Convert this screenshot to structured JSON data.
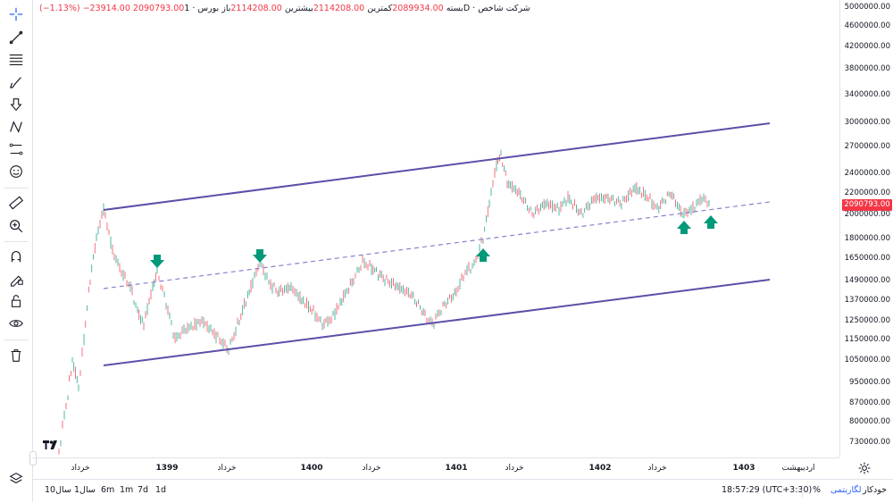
{
  "legend": {
    "symbol": "شرکت شاخص",
    "interval": "1D",
    "exchange": "بورس",
    "open_label": "باز",
    "open": "2114208.00",
    "high_label": "بیشترین",
    "high": "2114208.00",
    "low_label": "کمترین",
    "low": "2089934.00",
    "close_label": "بسته",
    "close": "2090793.00",
    "change": "−23914.00",
    "change_pct": "(−1.13%)"
  },
  "price_axis": {
    "ticks": [
      "5000000.00",
      "4600000.00",
      "4200000.00",
      "3800000.00",
      "3400000.00",
      "3000000.00",
      "2700000.00",
      "2400000.00",
      "2200000.00",
      "2000000.00",
      "1800000.00",
      "1650000.00",
      "1490000.00",
      "1370000.00",
      "1250000.00",
      "1150000.00",
      "1050000.00",
      "950000.00",
      "870000.00",
      "800000.00",
      "730000.00"
    ],
    "current_price": "2090793.00"
  },
  "time_axis": {
    "labels": [
      "خرداد",
      "1399",
      "خرداد",
      "1400",
      "خرداد",
      "1401",
      "خرداد",
      "1402",
      "خرداد",
      "1403",
      "اردیبهشت"
    ]
  },
  "bottom_bar": {
    "ranges": [
      "1d",
      "7d",
      "1m",
      "6m",
      "1سال",
      "10سال"
    ],
    "clock": "18:57:29 (UTC+3:30)",
    "percent": "%",
    "log": "لگاریتمی",
    "auto": "خودکار"
  },
  "colors": {
    "channel": "#5b4fa8",
    "up_candle": "#089981",
    "down_candle": "#f23645",
    "arrow": "#00997a",
    "accent": "#2962ff"
  },
  "chart_data": {
    "type": "candlestick",
    "scale": "logarithmic",
    "series": [
      {
        "date": "1398-Q4",
        "value": 1300000
      },
      {
        "date": "1399-03",
        "value": 2100000
      },
      {
        "date": "1399-07",
        "value": 1250000
      },
      {
        "date": "1400-01",
        "value": 1120000
      },
      {
        "date": "1400-03",
        "value": 1620000
      },
      {
        "date": "1400-09",
        "value": 1250000
      },
      {
        "date": "1401-01",
        "value": 1600000
      },
      {
        "date": "1401-06",
        "value": 1260000
      },
      {
        "date": "1401-12",
        "value": 2600000
      },
      {
        "date": "1402-03",
        "value": 2000000
      },
      {
        "date": "1402-09",
        "value": 2200000
      },
      {
        "date": "1403-02",
        "value": 2090793
      }
    ],
    "annotations": [
      "ascending channel",
      "midline dashed",
      "arrows down at midline",
      "arrows up at midline"
    ],
    "ylim": [
      700000,
      5000000
    ]
  }
}
